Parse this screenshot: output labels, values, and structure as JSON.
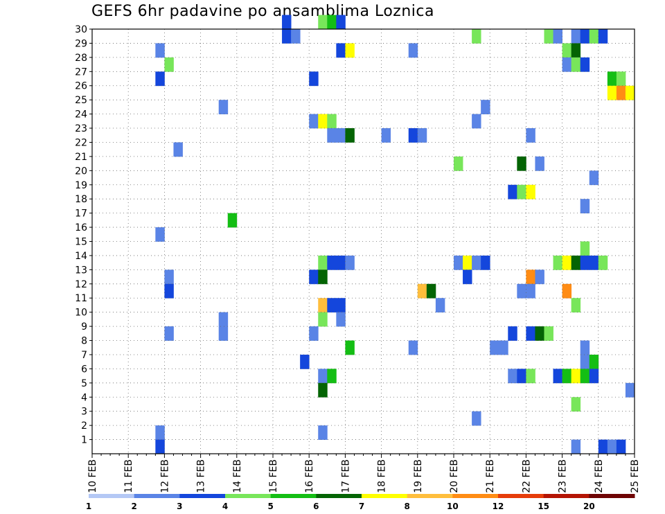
{
  "chart_data": {
    "type": "heatmap",
    "title": "GEFS 6hr padavine po ansamblima Loznica",
    "y_ticks": [
      "1",
      "2",
      "3",
      "4",
      "5",
      "6",
      "7",
      "8",
      "9",
      "10",
      "11",
      "12",
      "13",
      "14",
      "15",
      "16",
      "17",
      "18",
      "19",
      "20",
      "21",
      "22",
      "23",
      "24",
      "25",
      "26",
      "27",
      "28",
      "29",
      "30"
    ],
    "x_ticks": [
      "10 FEB",
      "11 FEB",
      "12 FEB",
      "13 FEB",
      "14 FEB",
      "15 FEB",
      "16 FEB",
      "17 FEB",
      "18 FEB",
      "19 FEB",
      "20 FEB",
      "21 FEB",
      "22 FEB",
      "23 FEB",
      "24 FEB",
      "25 FEB"
    ],
    "x_range_steps": [
      0,
      60
    ],
    "y_range_members": [
      0,
      30
    ],
    "time_step_hours": 6,
    "grid": true,
    "legend": {
      "placement": "bottom",
      "colors": [
        "#b4c8f5",
        "#5a84e6",
        "#1446dc",
        "#78e65a",
        "#14be14",
        "#046404",
        "#ffff00",
        "#ffbe3c",
        "#ff8c14",
        "#e63c0a",
        "#b41404",
        "#6e0404"
      ],
      "labels": [
        "1",
        "2",
        "3",
        "4",
        "5",
        "6",
        "7",
        "8",
        "10",
        "12",
        "15",
        "20"
      ]
    },
    "cells": [
      [
        21,
        30,
        2
      ],
      [
        25,
        30,
        3
      ],
      [
        26,
        30,
        4
      ],
      [
        27,
        30,
        2
      ],
      [
        21,
        29,
        2
      ],
      [
        22,
        29,
        1
      ],
      [
        42,
        29,
        3
      ],
      [
        50,
        29,
        3
      ],
      [
        51,
        29,
        1
      ],
      [
        53,
        29,
        1
      ],
      [
        54,
        29,
        2
      ],
      [
        55,
        29,
        3
      ],
      [
        56,
        29,
        2
      ],
      [
        7,
        28,
        1
      ],
      [
        27,
        28,
        2
      ],
      [
        28,
        28,
        6
      ],
      [
        35,
        28,
        1
      ],
      [
        52,
        28,
        3
      ],
      [
        53,
        28,
        5
      ],
      [
        8,
        27,
        3
      ],
      [
        52,
        27,
        1
      ],
      [
        53,
        27,
        3
      ],
      [
        54,
        27,
        2
      ],
      [
        7,
        26,
        2
      ],
      [
        24,
        26,
        2
      ],
      [
        57,
        26,
        4
      ],
      [
        58,
        26,
        3
      ],
      [
        57,
        25,
        6
      ],
      [
        58,
        25,
        8
      ],
      [
        59,
        25,
        6
      ],
      [
        14,
        24,
        1
      ],
      [
        43,
        24,
        1
      ],
      [
        24,
        23,
        1
      ],
      [
        25,
        23,
        6
      ],
      [
        26,
        23,
        3
      ],
      [
        42,
        23,
        1
      ],
      [
        26,
        22,
        1
      ],
      [
        27,
        22,
        1
      ],
      [
        28,
        22,
        5
      ],
      [
        32,
        22,
        1
      ],
      [
        35,
        22,
        2
      ],
      [
        36,
        22,
        1
      ],
      [
        48,
        22,
        1
      ],
      [
        9,
        21,
        1
      ],
      [
        40,
        20,
        3
      ],
      [
        47,
        20,
        5
      ],
      [
        49,
        20,
        1
      ],
      [
        55,
        19,
        1
      ],
      [
        46,
        18,
        2
      ],
      [
        47,
        18,
        3
      ],
      [
        48,
        18,
        6
      ],
      [
        54,
        17,
        1
      ],
      [
        15,
        16,
        4
      ],
      [
        7,
        15,
        1
      ],
      [
        54,
        14,
        3
      ],
      [
        25,
        13,
        3
      ],
      [
        26,
        13,
        2
      ],
      [
        27,
        13,
        2
      ],
      [
        28,
        13,
        1
      ],
      [
        40,
        13,
        1
      ],
      [
        41,
        13,
        6
      ],
      [
        42,
        13,
        1
      ],
      [
        43,
        13,
        2
      ],
      [
        51,
        13,
        3
      ],
      [
        52,
        13,
        6
      ],
      [
        53,
        13,
        5
      ],
      [
        54,
        13,
        2
      ],
      [
        55,
        13,
        2
      ],
      [
        56,
        13,
        3
      ],
      [
        8,
        12,
        1
      ],
      [
        24,
        12,
        2
      ],
      [
        25,
        12,
        5
      ],
      [
        41,
        12,
        2
      ],
      [
        48,
        12,
        8
      ],
      [
        49,
        12,
        1
      ],
      [
        8,
        11,
        2
      ],
      [
        36,
        11,
        7
      ],
      [
        37,
        11,
        5
      ],
      [
        47,
        11,
        1
      ],
      [
        48,
        11,
        1
      ],
      [
        52,
        11,
        8
      ],
      [
        25,
        10,
        7
      ],
      [
        26,
        10,
        2
      ],
      [
        27,
        10,
        2
      ],
      [
        38,
        10,
        1
      ],
      [
        53,
        10,
        3
      ],
      [
        14,
        9,
        1
      ],
      [
        25,
        9,
        3
      ],
      [
        27,
        9,
        1
      ],
      [
        8,
        8,
        1
      ],
      [
        14,
        8,
        1
      ],
      [
        24,
        8,
        1
      ],
      [
        46,
        8,
        2
      ],
      [
        48,
        8,
        2
      ],
      [
        49,
        8,
        5
      ],
      [
        50,
        8,
        3
      ],
      [
        28,
        7,
        4
      ],
      [
        35,
        7,
        1
      ],
      [
        44,
        7,
        1
      ],
      [
        45,
        7,
        1
      ],
      [
        54,
        7,
        1
      ],
      [
        23,
        6,
        2
      ],
      [
        54,
        6,
        1
      ],
      [
        55,
        6,
        4
      ],
      [
        25,
        5,
        1
      ],
      [
        26,
        5,
        4
      ],
      [
        46,
        5,
        1
      ],
      [
        47,
        5,
        2
      ],
      [
        48,
        5,
        3
      ],
      [
        51,
        5,
        2
      ],
      [
        52,
        5,
        4
      ],
      [
        53,
        5,
        6
      ],
      [
        54,
        5,
        4
      ],
      [
        55,
        5,
        2
      ],
      [
        25,
        4,
        5
      ],
      [
        59,
        4,
        1
      ],
      [
        53,
        3,
        3
      ],
      [
        42,
        2,
        1
      ],
      [
        7,
        1,
        1
      ],
      [
        25,
        1,
        1
      ],
      [
        7,
        0,
        2
      ],
      [
        53,
        0,
        1
      ],
      [
        56,
        0,
        2
      ],
      [
        57,
        0,
        1
      ],
      [
        58,
        0,
        2
      ]
    ]
  }
}
